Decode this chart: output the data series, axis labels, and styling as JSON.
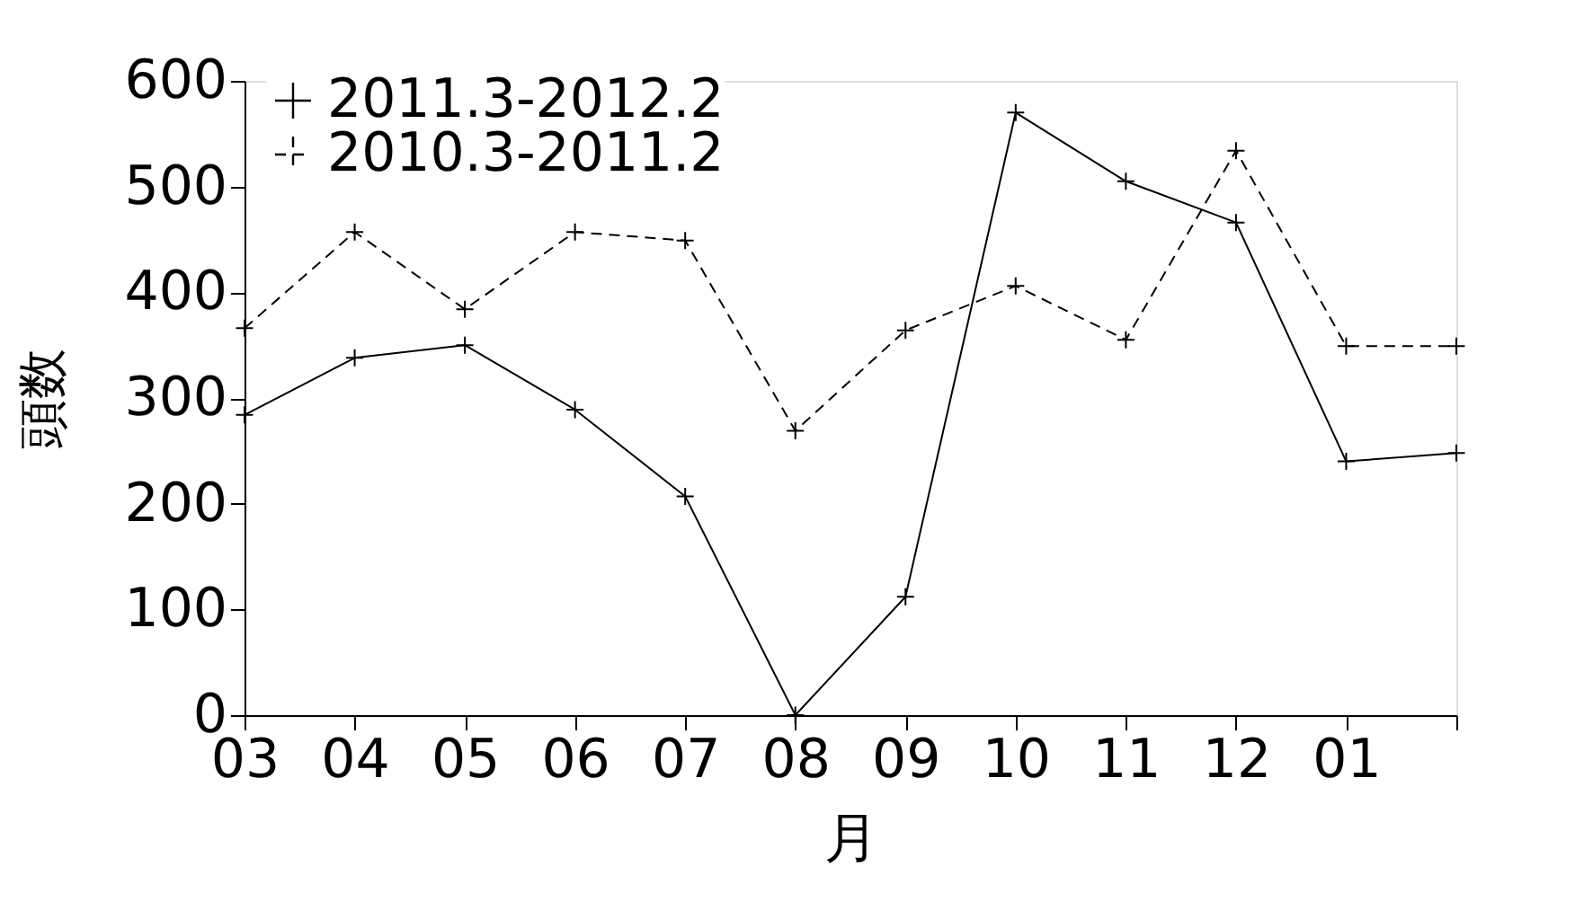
{
  "chart_data": {
    "type": "line",
    "xlabel": "月",
    "ylabel": "頭数",
    "categories": [
      "03",
      "04",
      "05",
      "06",
      "07",
      "08",
      "09",
      "10",
      "11",
      "12",
      "01",
      null
    ],
    "ylim": [
      0,
      600
    ],
    "yticks": [
      0,
      100,
      200,
      300,
      400,
      500,
      600
    ],
    "series": [
      {
        "name": "2011.3-2012.2",
        "color": "#000000",
        "line_style": "solid",
        "marker": "cross",
        "values": [
          284,
          338,
          350,
          289,
          207,
          0,
          112,
          570,
          505,
          466,
          240,
          248
        ]
      },
      {
        "name": "2010.3-2011.2",
        "color": "#000000",
        "line_style": "dashed",
        "marker": "cross",
        "values": [
          366,
          457,
          384,
          457,
          449,
          269,
          364,
          406,
          355,
          534,
          349,
          349
        ]
      }
    ],
    "grid": false,
    "legend": "top left"
  }
}
